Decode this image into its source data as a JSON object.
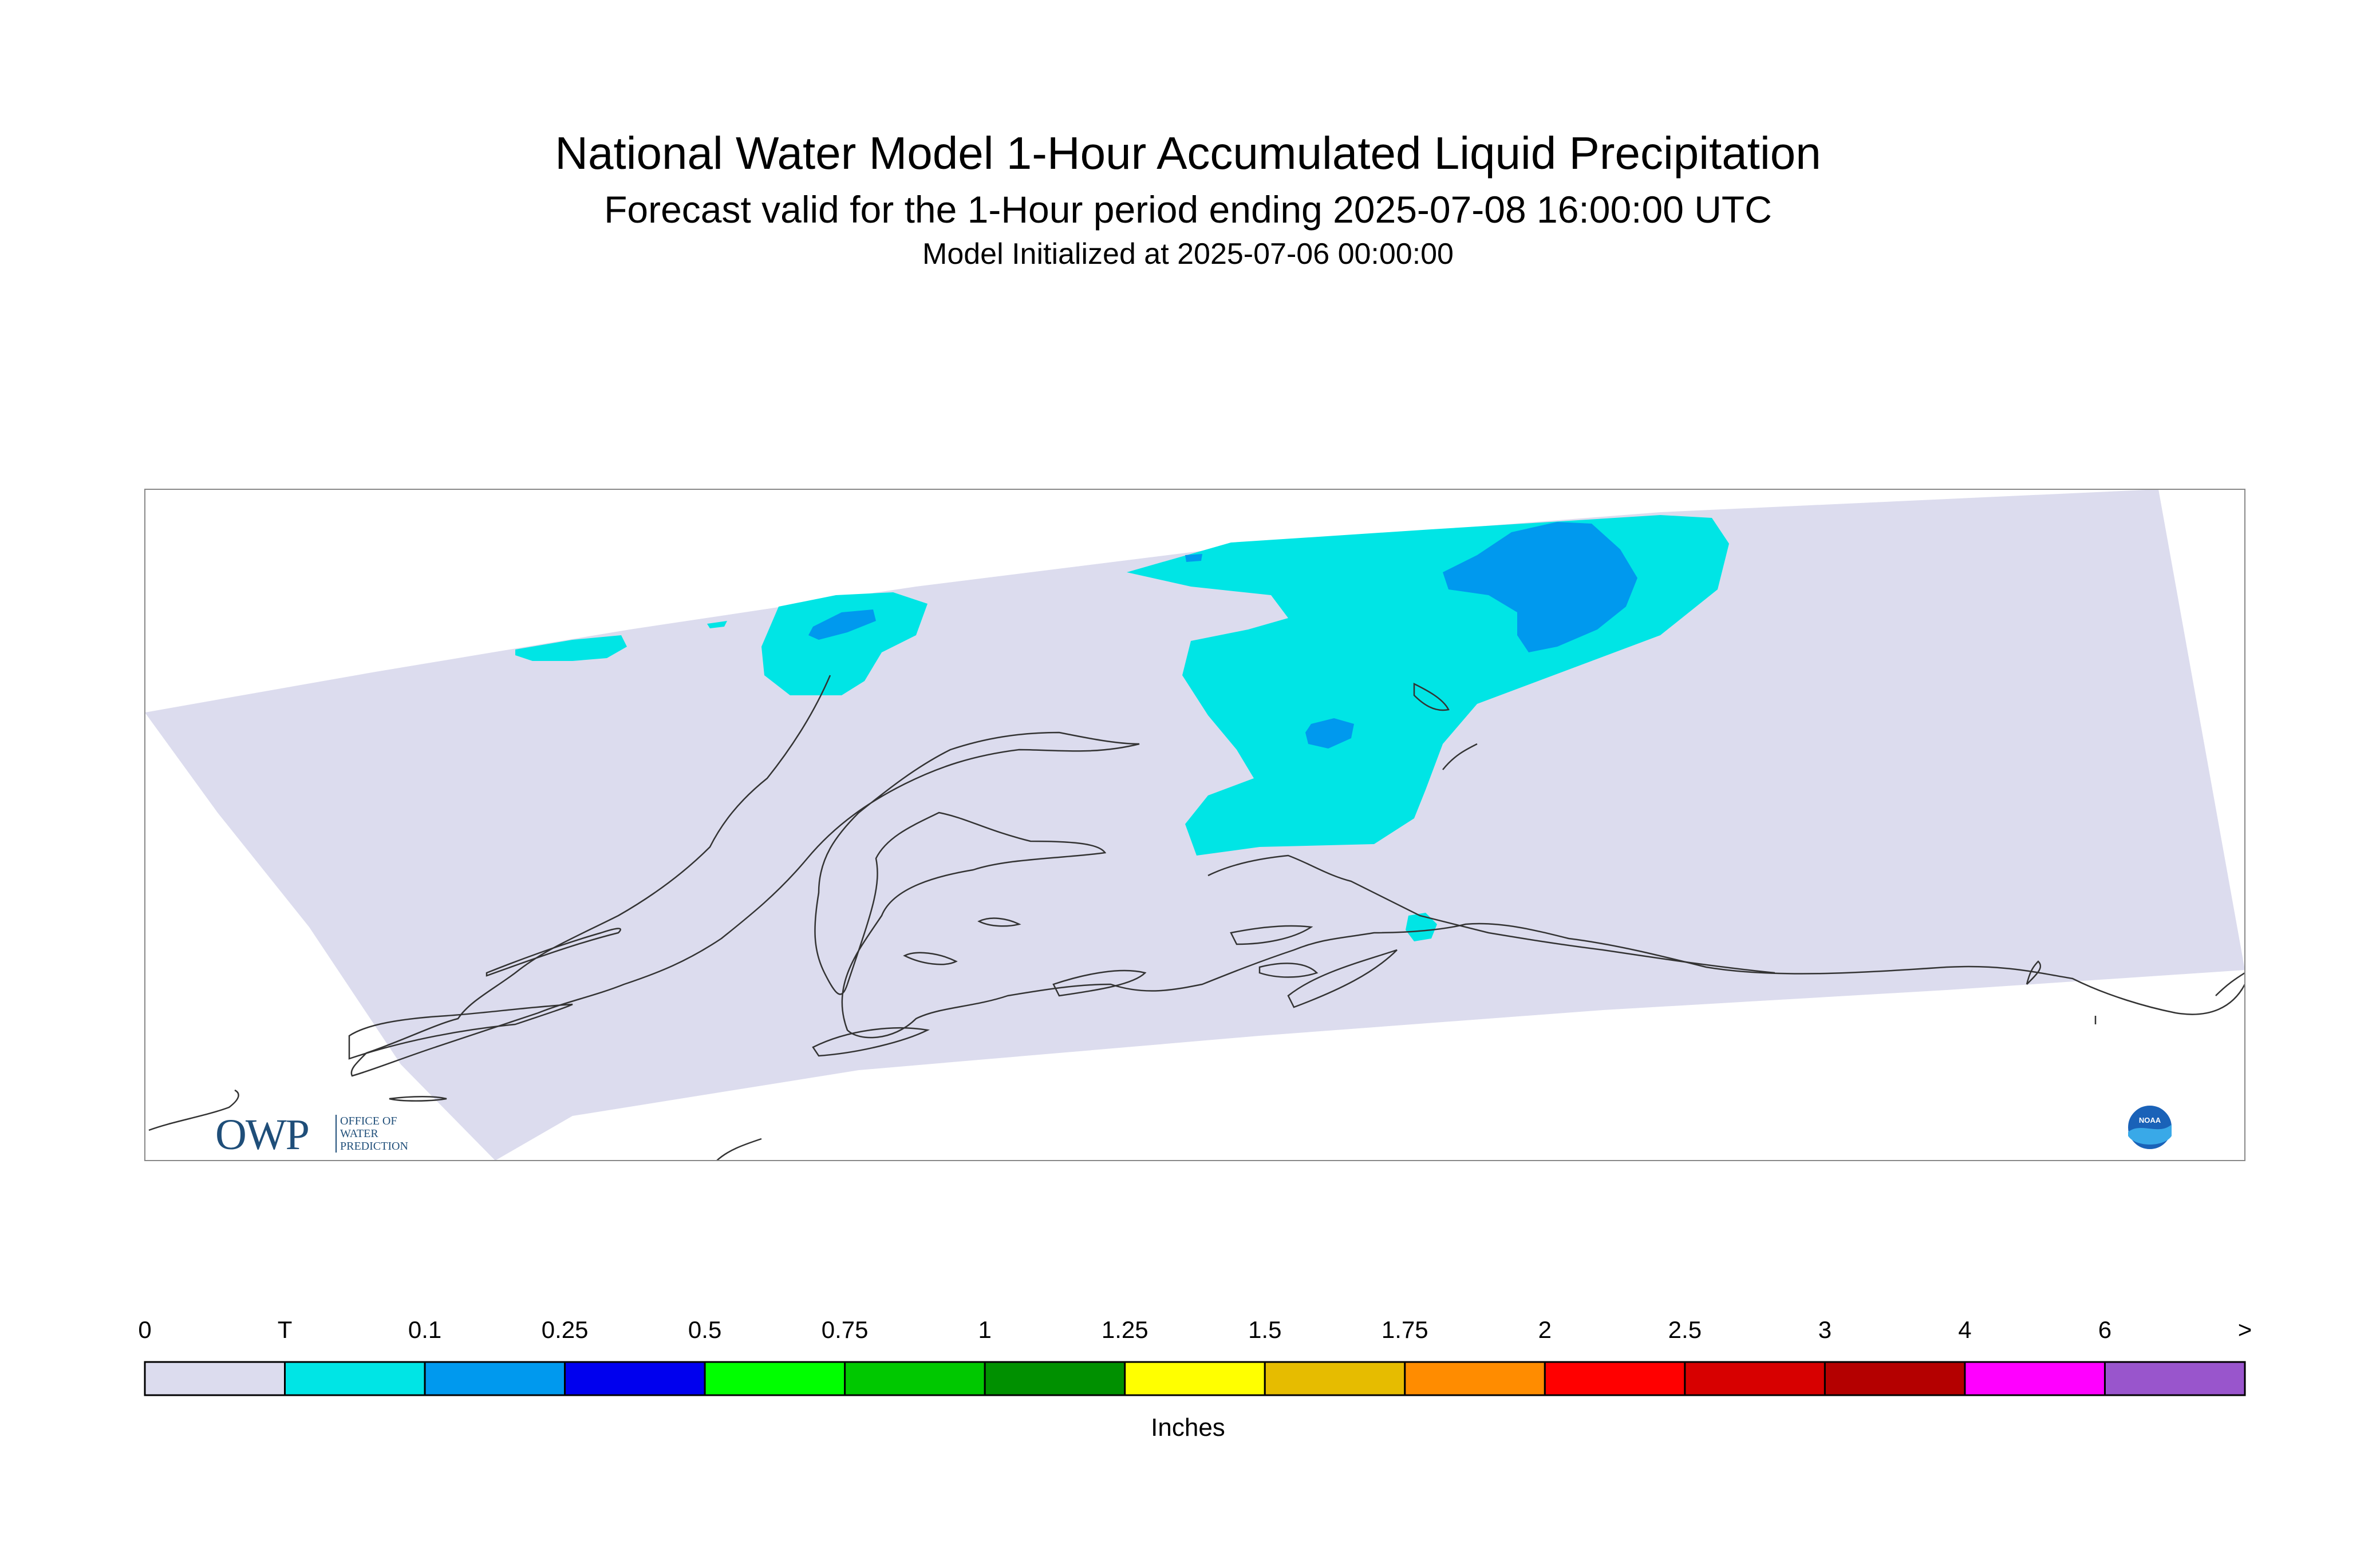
{
  "title": {
    "main": "National Water Model 1-Hour Accumulated Liquid Precipitation",
    "forecast": "Forecast valid for the 1-Hour period ending 2025-07-08 16:00:00 UTC",
    "initialized": "Model Initialized at 2025-07-06 00:00:00"
  },
  "map": {
    "domain_fill": "#dcdcee",
    "coastline_color": "#333333",
    "precip_areas": [
      {
        "category": "T",
        "color": "#00e5e5"
      },
      {
        "category": "0.1",
        "color": "#0099ee"
      }
    ]
  },
  "legend": {
    "ticks": [
      "0",
      "T",
      "0.1",
      "0.25",
      "0.5",
      "0.75",
      "1",
      "1.25",
      "1.5",
      "1.75",
      "2",
      "2.5",
      "3",
      "4",
      "6",
      ">"
    ],
    "colors": [
      "#dcdcee",
      "#00e5e5",
      "#0099ee",
      "#0000ee",
      "#00ff00",
      "#00c800",
      "#009000",
      "#ffff00",
      "#e6bc00",
      "#ff8c00",
      "#ff0000",
      "#d70000",
      "#b40000",
      "#ff00ff",
      "#9955cc"
    ],
    "units": "Inches"
  },
  "logos": {
    "owp_text": "OWP",
    "owp_lines": [
      "OFFICE OF",
      "WATER",
      "PREDICTION"
    ],
    "noaa_text": "NOAA",
    "noaa_icon": "noaa-logo-icon"
  }
}
